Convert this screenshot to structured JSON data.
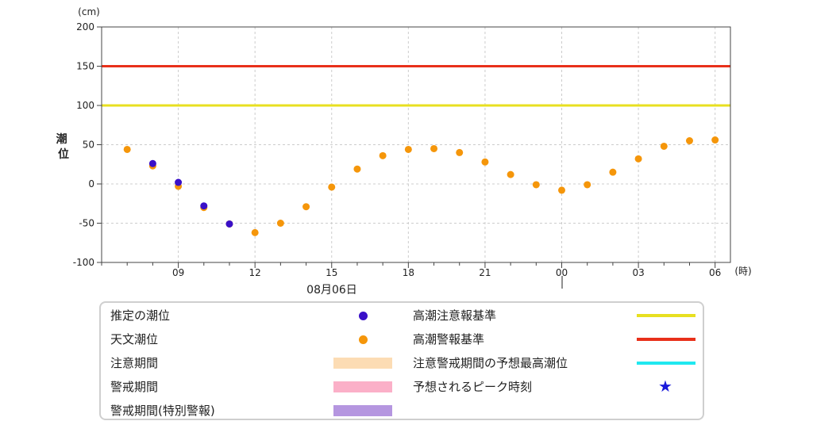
{
  "chart_data": {
    "type": "scatter",
    "y_unit_label": "(cm)",
    "ylabel": "潮位",
    "x_unit_label": "(時)",
    "date_label": "08月06日",
    "ylim": [
      -100,
      200
    ],
    "yticks": [
      -100,
      -50,
      0,
      50,
      100,
      150,
      200
    ],
    "xlim": [
      6,
      30.6
    ],
    "xticks": [
      {
        "hour": 9,
        "label": "09"
      },
      {
        "hour": 12,
        "label": "12"
      },
      {
        "hour": 15,
        "label": "15"
      },
      {
        "hour": 18,
        "label": "18"
      },
      {
        "hour": 21,
        "label": "21"
      },
      {
        "hour": 24,
        "label": "00"
      },
      {
        "hour": 27,
        "label": "03"
      },
      {
        "hour": 30,
        "label": "06"
      }
    ],
    "grid": true,
    "threshold_lines": [
      {
        "name": "高潮警報基準",
        "value": 150,
        "color": "#e8301a"
      },
      {
        "name": "高潮注意報基準",
        "value": 100,
        "color": "#e8e020"
      }
    ],
    "series": [
      {
        "name": "天文潮位",
        "color": "#f5960a",
        "points": [
          {
            "hour": 7,
            "value": 44
          },
          {
            "hour": 8,
            "value": 23
          },
          {
            "hour": 9,
            "value": -3
          },
          {
            "hour": 10,
            "value": -30
          },
          {
            "hour": 11,
            "value": -51
          },
          {
            "hour": 12,
            "value": -62
          },
          {
            "hour": 13,
            "value": -50
          },
          {
            "hour": 14,
            "value": -29
          },
          {
            "hour": 15,
            "value": -4
          },
          {
            "hour": 16,
            "value": 19
          },
          {
            "hour": 17,
            "value": 36
          },
          {
            "hour": 18,
            "value": 44
          },
          {
            "hour": 19,
            "value": 45
          },
          {
            "hour": 20,
            "value": 40
          },
          {
            "hour": 21,
            "value": 28
          },
          {
            "hour": 22,
            "value": 12
          },
          {
            "hour": 23,
            "value": -1
          },
          {
            "hour": 24,
            "value": -8
          },
          {
            "hour": 25,
            "value": -1
          },
          {
            "hour": 26,
            "value": 15
          },
          {
            "hour": 27,
            "value": 32
          },
          {
            "hour": 28,
            "value": 48
          },
          {
            "hour": 29,
            "value": 55
          },
          {
            "hour": 30,
            "value": 56
          }
        ]
      },
      {
        "name": "推定の潮位",
        "color": "#3a10c8",
        "points": [
          {
            "hour": 8,
            "value": 26
          },
          {
            "hour": 9,
            "value": 2
          },
          {
            "hour": 10,
            "value": -28
          },
          {
            "hour": 11,
            "value": -51
          }
        ]
      }
    ]
  },
  "legend": {
    "items": [
      {
        "label": "推定の潮位",
        "kind": "dot",
        "color": "#3a10c8"
      },
      {
        "label": "天文潮位",
        "kind": "dot",
        "color": "#f5960a"
      },
      {
        "label": "注意期間",
        "kind": "rect",
        "color": "#fcdcb4"
      },
      {
        "label": "警戒期間",
        "kind": "rect",
        "color": "#fbb0c8"
      },
      {
        "label": "警戒期間(特別警報)",
        "kind": "rect",
        "color": "#b596e0"
      },
      {
        "label": "高潮注意報基準",
        "kind": "line",
        "color": "#e8e020"
      },
      {
        "label": "高潮警報基準",
        "kind": "line",
        "color": "#e8301a"
      },
      {
        "label": "注意警戒期間の予想最高潮位",
        "kind": "line",
        "color": "#20e8f0"
      },
      {
        "label": "予想されるピーク時刻",
        "kind": "star",
        "color": "#1a1adb",
        "symbol": "★"
      }
    ]
  }
}
